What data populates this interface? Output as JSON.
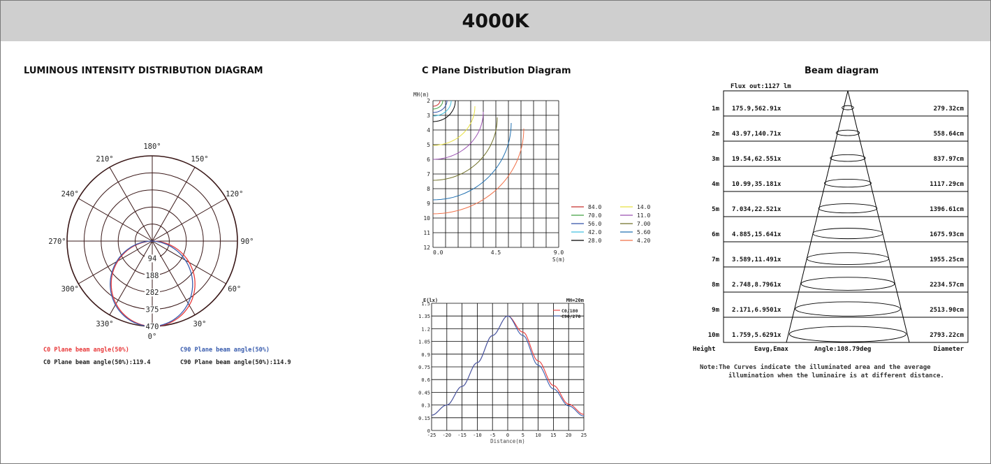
{
  "header": {
    "title": "4000K"
  },
  "colors": {
    "c0": "#e8393a",
    "c90": "#3a5dae",
    "grid": "#000000",
    "header_bg": "#cfcfcf"
  },
  "polar": {
    "title": "LUMINOUS INTENSITY DISTRIBUTION DIAGRAM",
    "angle_labels": [
      "180°",
      "150°",
      "120°",
      "90°",
      "60°",
      "30°",
      "0°",
      "330°",
      "300°",
      "270°",
      "240°",
      "210°"
    ],
    "ring_labels": [
      "94",
      "188",
      "282",
      "375",
      "470"
    ],
    "legend": {
      "c0_title": "C0 Plane beam angle(50%)",
      "c90_title": "C90 Plane beam angle(50%)",
      "c0_value": "C0 Plane beam angle(50%):119.4",
      "c90_value": "C90 Plane beam angle(50%):114.9"
    }
  },
  "cplane": {
    "title": "C Plane Distribution Diagram",
    "y_axis_label": "MH(m)",
    "x_axis_label": "S(m)",
    "x_ticks": [
      "0.0",
      "4.5",
      "9.0"
    ],
    "y_ticks": [
      "2",
      "3",
      "4",
      "5",
      "6",
      "7",
      "8",
      "9",
      "10",
      "11",
      "12"
    ],
    "legend": [
      {
        "value": "84.0",
        "color": "#c8302c"
      },
      {
        "value": "14.0",
        "color": "#e8e040"
      },
      {
        "value": "70.0",
        "color": "#40a040"
      },
      {
        "value": "11.0",
        "color": "#9a50b0"
      },
      {
        "value": "56.0",
        "color": "#3050a8"
      },
      {
        "value": "7.00",
        "color": "#707028"
      },
      {
        "value": "42.0",
        "color": "#40c0e0"
      },
      {
        "value": "5.60",
        "color": "#2070b0"
      },
      {
        "value": "28.0",
        "color": "#000000"
      },
      {
        "value": "4.20",
        "color": "#f07048"
      }
    ]
  },
  "illum": {
    "y_axis_label": "E(lx)",
    "x_axis_label": "Distance(m)",
    "mh_label": "MH=20m",
    "series_labels": [
      "C0/180",
      "C90/270"
    ],
    "y_ticks": [
      "0",
      "0.15",
      "0.3",
      "0.45",
      "0.6",
      "0.75",
      "0.9",
      "1.05",
      "1.2",
      "1.35",
      "1.5"
    ],
    "x_ticks": [
      "-25",
      "-20",
      "-15",
      "-10",
      "-5",
      "0",
      "5",
      "10",
      "15",
      "20",
      "25"
    ]
  },
  "chart_data": [
    {
      "type": "line",
      "title": "LUMINOUS INTENSITY DISTRIBUTION DIAGRAM",
      "r_max": 470,
      "r_ticks": [
        94,
        188,
        282,
        375,
        470
      ],
      "series": [
        {
          "name": "C0 Plane beam angle(50%)",
          "color": "#e8393a",
          "beam_angle": 119.4
        },
        {
          "name": "C90 Plane beam angle(50%)",
          "color": "#3a5dae",
          "beam_angle": 114.9
        }
      ]
    },
    {
      "type": "line",
      "title": "C Plane Distribution Diagram",
      "xlabel": "S(m)",
      "ylabel": "MH(m)",
      "xlim": [
        0,
        9
      ],
      "ylim": [
        2,
        12
      ],
      "isolux_levels": [
        84.0,
        70.0,
        56.0,
        42.0,
        28.0,
        14.0,
        11.0,
        7.0,
        5.6,
        4.2
      ]
    },
    {
      "type": "line",
      "xlabel": "Distance(m)",
      "ylabel": "E(lx)",
      "xlim": [
        -25,
        25
      ],
      "ylim": [
        0,
        1.5
      ],
      "series": [
        {
          "name": "C0/180",
          "color": "#e8393a",
          "x": [
            -25,
            -20,
            -15,
            -10,
            -5,
            0,
            5,
            10,
            15,
            20,
            25
          ],
          "y": [
            0.18,
            0.3,
            0.52,
            0.8,
            1.12,
            1.35,
            1.16,
            0.82,
            0.53,
            0.31,
            0.19
          ]
        },
        {
          "name": "C90/270",
          "color": "#3a5dae",
          "x": [
            -25,
            -20,
            -15,
            -10,
            -5,
            0,
            5,
            10,
            15,
            20,
            25
          ],
          "y": [
            0.18,
            0.3,
            0.52,
            0.8,
            1.12,
            1.35,
            1.12,
            0.77,
            0.49,
            0.29,
            0.17
          ]
        }
      ]
    },
    {
      "type": "table",
      "title": "Beam diagram",
      "flux_label": "Flux out:1127 lm",
      "columns": [
        "Height",
        "Eavg,Emax",
        "Angle:108.79deg",
        "Diameter"
      ],
      "rows": [
        {
          "height": "1m",
          "e": "175.9,562.91x",
          "diameter": "279.32cm"
        },
        {
          "height": "2m",
          "e": "43.97,140.71x",
          "diameter": "558.64cm"
        },
        {
          "height": "3m",
          "e": "19.54,62.551x",
          "diameter": "837.97cm"
        },
        {
          "height": "4m",
          "e": "10.99,35.181x",
          "diameter": "1117.29cm"
        },
        {
          "height": "5m",
          "e": "7.034,22.521x",
          "diameter": "1396.61cm"
        },
        {
          "height": "6m",
          "e": "4.885,15.641x",
          "diameter": "1675.93cm"
        },
        {
          "height": "7m",
          "e": "3.589,11.491x",
          "diameter": "1955.25cm"
        },
        {
          "height": "8m",
          "e": "2.748,8.7961x",
          "diameter": "2234.57cm"
        },
        {
          "height": "9m",
          "e": "2.171,6.9501x",
          "diameter": "2513.90cm"
        },
        {
          "height": "10m",
          "e": "1.759,5.6291x",
          "diameter": "2793.22cm"
        }
      ],
      "note_line1": "Note:The Curves indicate the illuminated area and the average",
      "note_line2": "illumination when the luminaire is at different distance."
    }
  ]
}
